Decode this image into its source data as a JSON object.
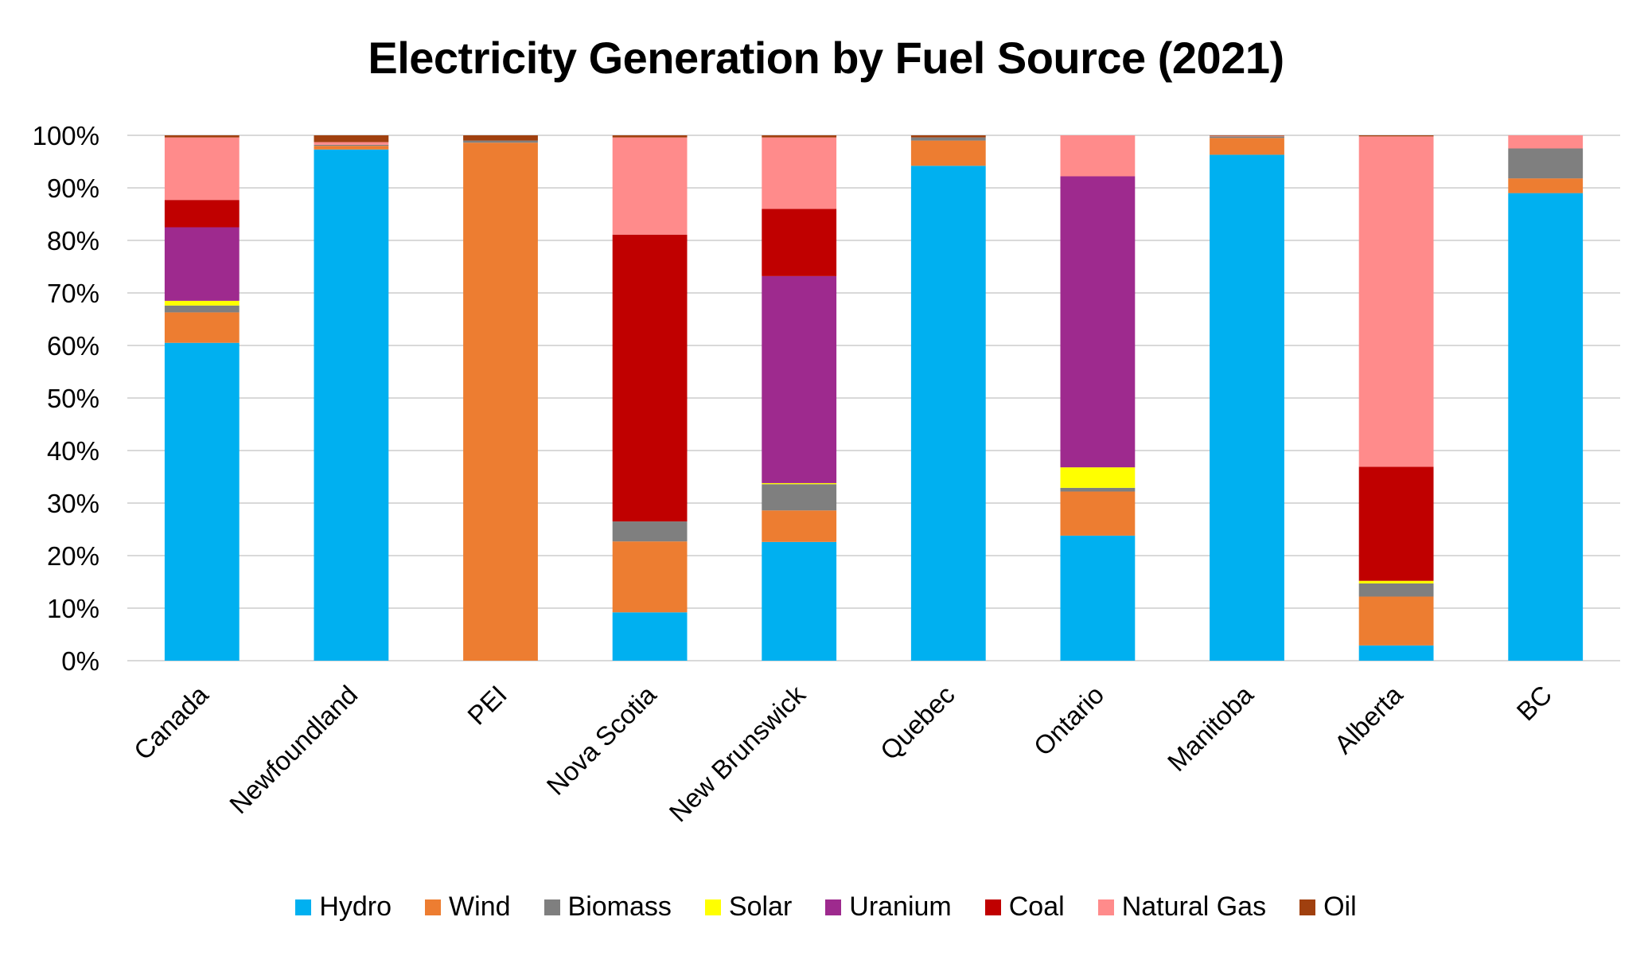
{
  "chart_data": {
    "type": "bar",
    "stacked": true,
    "normalized": true,
    "title": "Electricity Generation by Fuel Source (2021)",
    "xlabel": "",
    "ylabel": "",
    "ylim": [
      0,
      100
    ],
    "y_ticks": [
      "0%",
      "10%",
      "20%",
      "30%",
      "40%",
      "50%",
      "60%",
      "70%",
      "80%",
      "90%",
      "100%"
    ],
    "grid": "horizontal",
    "legend_position": "bottom",
    "categories": [
      "Canada",
      "Newfoundland",
      "PEI",
      "Nova Scotia",
      "New Brunswick",
      "Quebec",
      "Ontario",
      "Manitoba",
      "Alberta",
      "BC"
    ],
    "series": [
      {
        "name": "Hydro",
        "color": "#00B0F0",
        "values": [
          60.5,
          97.3,
          0,
          9.2,
          22.6,
          94.2,
          23.8,
          96.3,
          2.9,
          89.0
        ]
      },
      {
        "name": "Wind",
        "color": "#ED7D31",
        "values": [
          5.8,
          0.7,
          98.6,
          13.5,
          6.0,
          4.8,
          8.4,
          3.2,
          9.3,
          2.8
        ]
      },
      {
        "name": "Biomass",
        "color": "#7F7F7F",
        "values": [
          1.3,
          0.2,
          0.4,
          3.8,
          5.0,
          0.6,
          0.7,
          0.3,
          2.5,
          5.7
        ]
      },
      {
        "name": "Solar",
        "color": "#FFFF00",
        "values": [
          0.9,
          0,
          0,
          0,
          0.2,
          0,
          3.9,
          0,
          0.5,
          0
        ]
      },
      {
        "name": "Uranium",
        "color": "#9E2A8E",
        "values": [
          14.0,
          0,
          0,
          0,
          39.4,
          0,
          55.4,
          0,
          0,
          0
        ]
      },
      {
        "name": "Coal",
        "color": "#C00000",
        "values": [
          5.2,
          0,
          0,
          54.6,
          12.8,
          0,
          0,
          0,
          21.7,
          0
        ]
      },
      {
        "name": "Natural Gas",
        "color": "#FF8B8B",
        "values": [
          11.9,
          0.5,
          0,
          18.5,
          13.6,
          0,
          7.8,
          0.1,
          62.9,
          2.5
        ]
      },
      {
        "name": "Oil",
        "color": "#A0400F",
        "values": [
          0.4,
          1.3,
          1.0,
          0.4,
          0.4,
          0.4,
          0,
          0.1,
          0.2,
          0
        ]
      }
    ]
  }
}
